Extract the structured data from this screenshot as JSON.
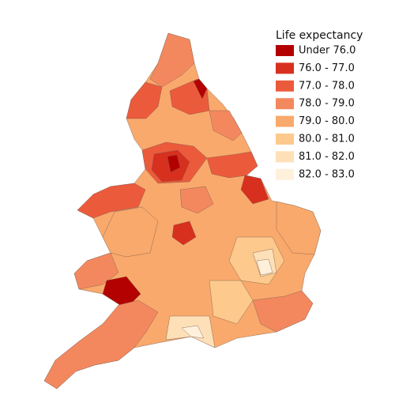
{
  "legend": {
    "title": "Life expectancy",
    "items": [
      {
        "label": "Under 76.0",
        "color": "#b30000"
      },
      {
        "label": "76.0 - 77.0",
        "color": "#d7301f"
      },
      {
        "label": "77.0 - 78.0",
        "color": "#ec5a3c"
      },
      {
        "label": "78.0 - 79.0",
        "color": "#f3885f"
      },
      {
        "label": "79.0 - 80.0",
        "color": "#f9a96c"
      },
      {
        "label": "80.0 - 81.0",
        "color": "#fdc98c"
      },
      {
        "label": "81.0 - 82.0",
        "color": "#fee0b8"
      },
      {
        "label": "82.0 - 83.0",
        "color": "#fff0dc"
      }
    ]
  }
}
